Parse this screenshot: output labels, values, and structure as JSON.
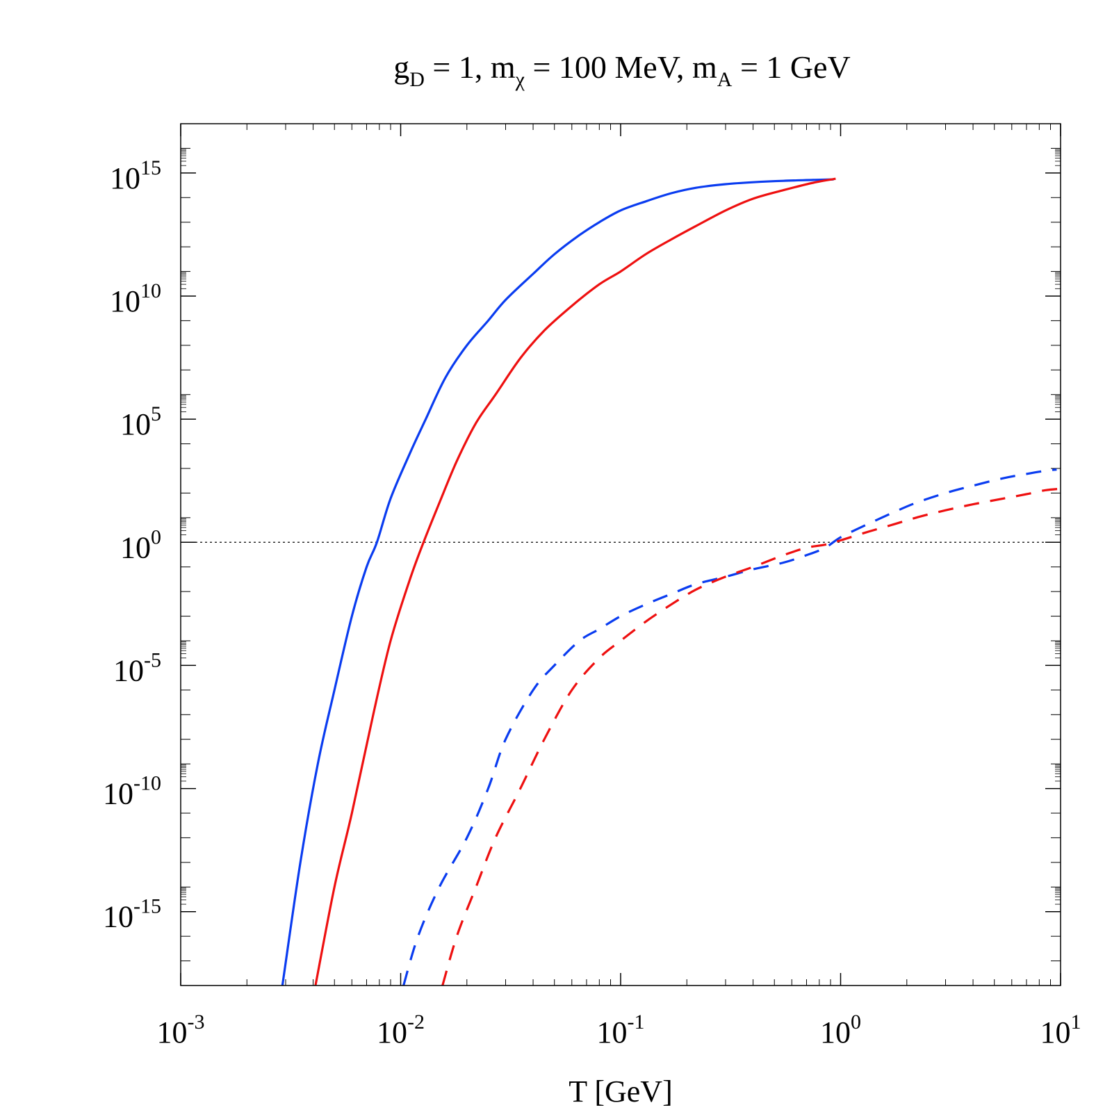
{
  "chart_data": {
    "type": "line",
    "title_parts": {
      "g": "g",
      "g_sub": "D",
      "g_val": " = 1, m",
      "chi_sub": "χ",
      "chi_val": " = 100 MeV, m",
      "a_sub": "A",
      "a_val": " = 1 GeV"
    },
    "xlabel": "T [GeV]",
    "ylabel": "",
    "xscale": "log",
    "yscale": "log",
    "xlim": [
      0.001,
      10
    ],
    "ylim": [
      1e-18,
      1e+17
    ],
    "x_ticks": [
      {
        "base": "10",
        "exp": "-3"
      },
      {
        "base": "10",
        "exp": "-2"
      },
      {
        "base": "10",
        "exp": "-1"
      },
      {
        "base": "10",
        "exp": "0"
      },
      {
        "base": "10",
        "exp": "1"
      }
    ],
    "y_ticks": [
      {
        "base": "10",
        "exp": "15"
      },
      {
        "base": "10",
        "exp": "10"
      },
      {
        "base": "10",
        "exp": "5"
      },
      {
        "base": "10",
        "exp": "0"
      },
      {
        "base": "10",
        "exp": "-5"
      },
      {
        "base": "10",
        "exp": "-10"
      },
      {
        "base": "10",
        "exp": "-15"
      }
    ],
    "reference_line": {
      "y": 1,
      "style": "dotted",
      "color": "#000000"
    },
    "series": [
      {
        "name": "blue-solid",
        "color": "#0a3cf0",
        "style": "solid",
        "x": [
          0.0029,
          0.0035,
          0.0042,
          0.005,
          0.006,
          0.007,
          0.0078,
          0.009,
          0.011,
          0.013,
          0.016,
          0.02,
          0.025,
          0.03,
          0.04,
          0.05,
          0.065,
          0.08,
          0.1,
          0.13,
          0.17,
          0.22,
          0.3,
          0.4,
          0.55,
          0.75,
          0.93
        ],
        "y": [
          1e-18,
          1e-13,
          1e-09,
          1e-06,
          0.001,
          0.1,
          1,
          60,
          4000,
          100000.0,
          5000000.0,
          100000000.0,
          1000000000.0,
          7000000000.0,
          80000000000.0,
          500000000000.0,
          3000000000000.0,
          10000000000000.0,
          30000000000000.0,
          70000000000000.0,
          150000000000000.0,
          250000000000000.0,
          350000000000000.0,
          420000000000000.0,
          480000000000000.0,
          520000000000000.0,
          550000000000000.0
        ]
      },
      {
        "name": "red-solid",
        "color": "#ee1010",
        "style": "solid",
        "x": [
          0.0041,
          0.005,
          0.006,
          0.0075,
          0.009,
          0.011,
          0.0127,
          0.015,
          0.018,
          0.022,
          0.027,
          0.035,
          0.045,
          0.06,
          0.08,
          0.1,
          0.13,
          0.17,
          0.22,
          0.3,
          0.4,
          0.55,
          0.75,
          0.95
        ],
        "y": [
          1e-18,
          1e-14,
          1e-11,
          1e-07,
          0.0001,
          0.03,
          1,
          40,
          2000,
          70000.0,
          1000000.0,
          30000000.0,
          400000000.0,
          4000000000.0,
          30000000000.0,
          100000000000.0,
          500000000000.0,
          2000000000000.0,
          7000000000000.0,
          30000000000000.0,
          90000000000000.0,
          200000000000000.0,
          400000000000000.0,
          580000000000000.0
        ]
      },
      {
        "name": "blue-dashed",
        "color": "#0a3cf0",
        "style": "dashed",
        "x": [
          0.0103,
          0.012,
          0.015,
          0.02,
          0.025,
          0.03,
          0.04,
          0.05,
          0.065,
          0.08,
          0.1,
          0.13,
          0.17,
          0.22,
          0.3,
          0.4,
          0.55,
          0.7,
          0.85,
          1.0,
          1.3,
          1.7,
          2.2,
          3.0,
          4.0,
          5.5,
          7.0,
          8.5,
          9.6
        ],
        "y": [
          1e-18,
          1e-16,
          1e-14,
          1e-12,
          1e-10,
          1e-08,
          1e-06,
          1e-05,
          0.0001,
          0.0003,
          0.001,
          0.003,
          0.008,
          0.02,
          0.04,
          0.08,
          0.15,
          0.3,
          0.6,
          1.6,
          5,
          15,
          40,
          100,
          200,
          400,
          600,
          800,
          900
        ]
      },
      {
        "name": "red-dashed",
        "color": "#ee1010",
        "style": "dashed",
        "x": [
          0.0155,
          0.018,
          0.022,
          0.027,
          0.035,
          0.045,
          0.06,
          0.08,
          0.1,
          0.13,
          0.17,
          0.22,
          0.3,
          0.4,
          0.55,
          0.7,
          0.85,
          1.0,
          1.3,
          1.7,
          2.2,
          3.0,
          4.0,
          5.5,
          7.0,
          8.5,
          10
        ],
        "y": [
          1e-18,
          1e-16,
          1e-14,
          1e-12,
          1e-10,
          1e-08,
          1e-06,
          2e-05,
          0.0001,
          0.0006,
          0.003,
          0.012,
          0.04,
          0.1,
          0.3,
          0.6,
          0.8,
          1.2,
          2.5,
          5,
          10,
          20,
          35,
          60,
          90,
          130,
          150
        ]
      }
    ]
  }
}
